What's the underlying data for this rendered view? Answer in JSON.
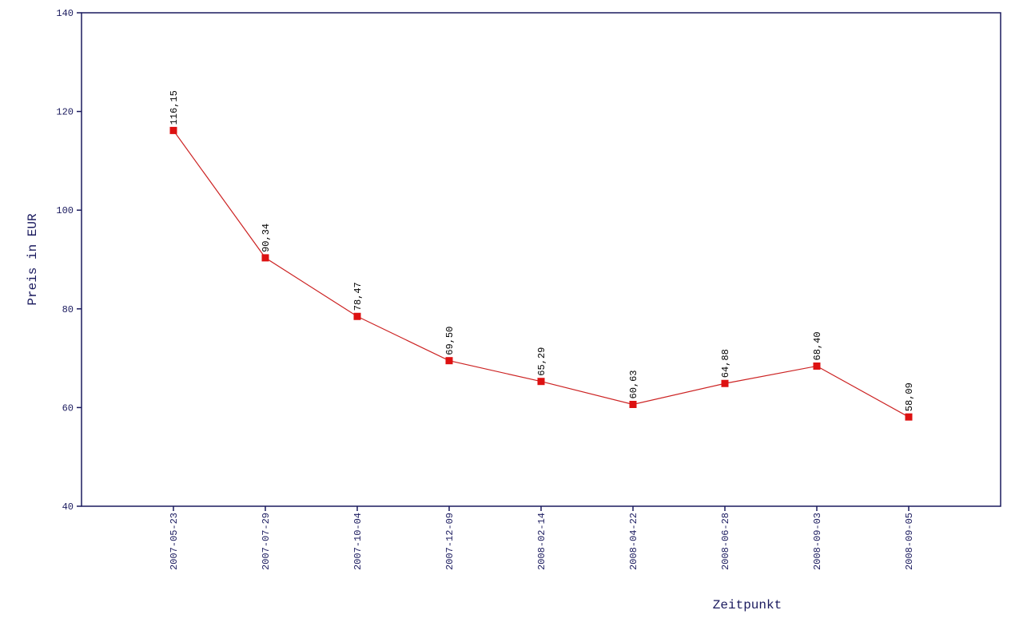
{
  "chart_data": {
    "type": "line",
    "x_label": "Zeitpunkt",
    "y_label": "Preis in EUR",
    "categories": [
      "2007-05-23",
      "2007-07-29",
      "2007-10-04",
      "2007-12-09",
      "2008-02-14",
      "2008-04-22",
      "2008-06-28",
      "2008-09-03",
      "2008-09-05"
    ],
    "series": [
      {
        "color": "#cc2222",
        "values": [
          116.15,
          90.34,
          78.47,
          69.5,
          65.29,
          60.63,
          64.88,
          68.4,
          58.09
        ],
        "value_labels": [
          "116,15",
          "90,34",
          "78,47",
          "69,50",
          "65,29",
          "60,63",
          "64,88",
          "68,40",
          "58,09"
        ]
      }
    ],
    "ylim": [
      40,
      140
    ],
    "yticks": [
      40,
      60,
      80,
      100,
      120,
      140
    ],
    "grid": false
  }
}
